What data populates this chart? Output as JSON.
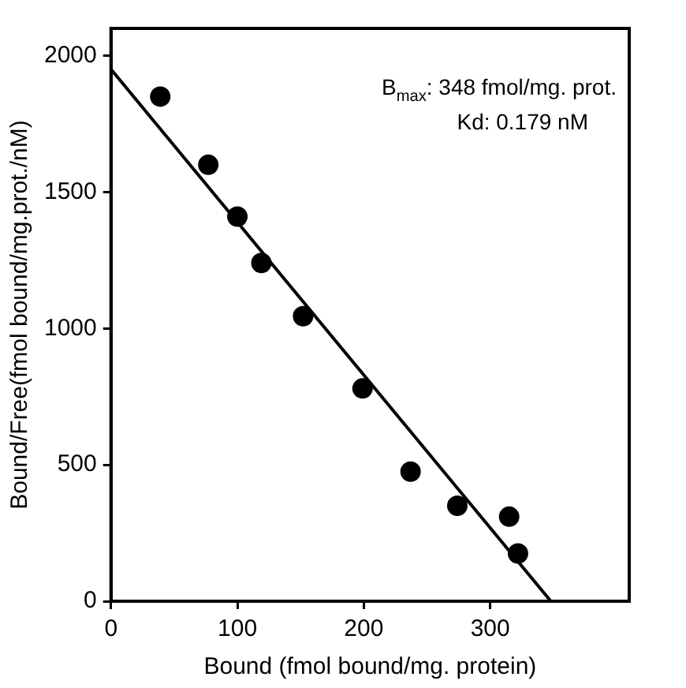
{
  "chart_data": {
    "type": "scatter",
    "xlabel": "Bound (fmol bound/mg. protein)",
    "ylabel": "Bound/Free(fmol bound/mg.prot./nM)",
    "annotations": [
      "B$_{max}$: 348 fmol/mg. prot.",
      "Kd: 0.179 nM"
    ],
    "series": [
      {
        "color": "#000000",
        "x": [
          39,
          77,
          100,
          119,
          152,
          199,
          237,
          274,
          315,
          322
        ],
        "values": [
          1850,
          1600,
          1410,
          1240,
          1045,
          780,
          475,
          350,
          310,
          175
        ],
        "marker": "circle"
      },
      {
        "type": "line",
        "color": "#000000",
        "x": [
          0,
          348
        ],
        "values": [
          1950,
          0
        ],
        "marker": "none",
        "line_style": "solid"
      }
    ],
    "xlim": [
      0,
      410
    ],
    "ylim": [
      0,
      2100
    ],
    "xticks": [
      0,
      100,
      200,
      300
    ],
    "yticks": [
      0,
      500,
      1000,
      1500,
      2000
    ],
    "grid": false,
    "legend": false
  }
}
